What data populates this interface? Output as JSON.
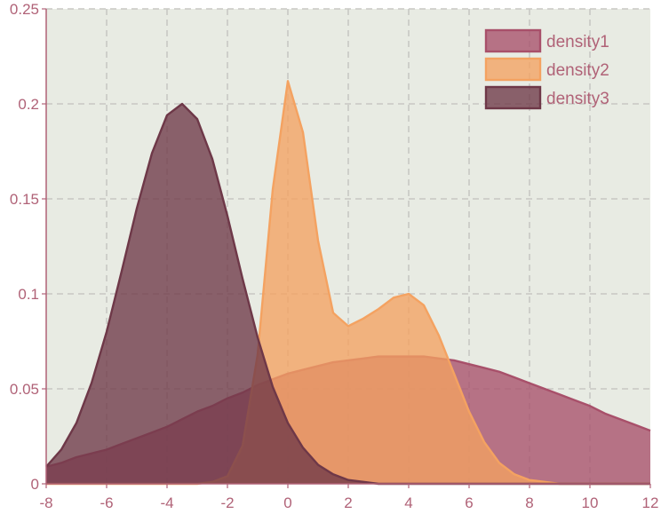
{
  "chart_data": {
    "type": "area",
    "title": "",
    "xlabel": "",
    "ylabel": "",
    "xlim": [
      -8,
      12
    ],
    "ylim": [
      0,
      0.25
    ],
    "grid": true,
    "legend_position": "top-right",
    "x_ticks": [
      "-8",
      "-6",
      "-4",
      "-2",
      "0",
      "2",
      "4",
      "6",
      "8",
      "10",
      "12"
    ],
    "y_ticks": [
      "0",
      "0.05",
      "0.1",
      "0.15",
      "0.2",
      "0.25"
    ],
    "x": [
      -8,
      -7.5,
      -7,
      -6.5,
      -6,
      -5.5,
      -5,
      -4.5,
      -4,
      -3.5,
      -3,
      -2.5,
      -2,
      -1.5,
      -1,
      -0.5,
      0,
      0.5,
      1,
      1.5,
      2,
      2.5,
      3,
      3.5,
      4,
      4.5,
      5,
      5.5,
      6,
      6.5,
      7,
      7.5,
      8,
      8.5,
      9,
      9.5,
      10,
      10.5,
      11,
      11.5,
      12
    ],
    "series": [
      {
        "name": "density1",
        "color": "#a8506a",
        "values": [
          0.009,
          0.011,
          0.014,
          0.016,
          0.018,
          0.021,
          0.024,
          0.027,
          0.03,
          0.034,
          0.038,
          0.041,
          0.045,
          0.048,
          0.052,
          0.055,
          0.058,
          0.06,
          0.062,
          0.064,
          0.065,
          0.066,
          0.067,
          0.067,
          0.067,
          0.067,
          0.066,
          0.065,
          0.063,
          0.061,
          0.059,
          0.056,
          0.053,
          0.05,
          0.047,
          0.044,
          0.041,
          0.037,
          0.034,
          0.031,
          0.028
        ]
      },
      {
        "name": "density2",
        "color": "#f4a261",
        "values": [
          0,
          0,
          0,
          0,
          0,
          0,
          0,
          0,
          0,
          0,
          0,
          0.001,
          0.004,
          0.02,
          0.068,
          0.155,
          0.212,
          0.185,
          0.128,
          0.09,
          0.083,
          0.087,
          0.092,
          0.098,
          0.1,
          0.094,
          0.078,
          0.058,
          0.038,
          0.022,
          0.011,
          0.005,
          0.002,
          0.001,
          0,
          0,
          0,
          0,
          0,
          0,
          0
        ]
      },
      {
        "name": "density3",
        "color": "#6e3848",
        "values": [
          0.009,
          0.018,
          0.032,
          0.053,
          0.08,
          0.112,
          0.145,
          0.174,
          0.194,
          0.2,
          0.192,
          0.171,
          0.141,
          0.108,
          0.077,
          0.051,
          0.032,
          0.019,
          0.01,
          0.005,
          0.002,
          0.001,
          0,
          0,
          0,
          0,
          0,
          0,
          0,
          0,
          0,
          0,
          0,
          0,
          0,
          0,
          0,
          0,
          0,
          0,
          0
        ]
      }
    ]
  }
}
